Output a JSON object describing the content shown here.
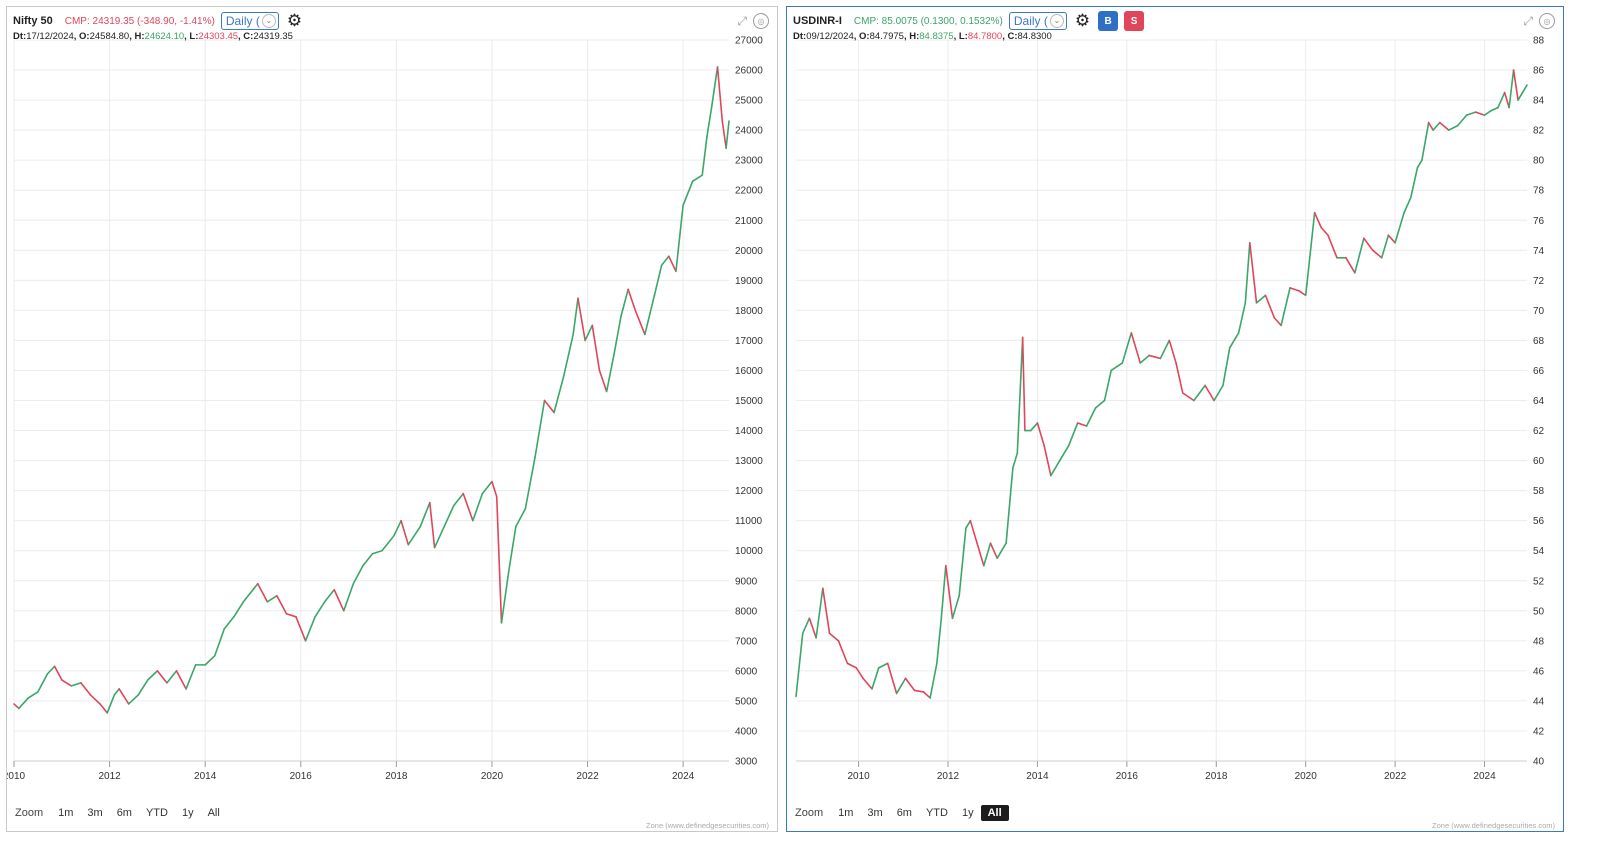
{
  "left": {
    "symbol": "Nifty 50",
    "cmp": "CMP: 24319.35 (-348.90, -1.41%)",
    "interval": "Daily (",
    "ohlc": {
      "dt_label": "Dt:",
      "dt": "17/12/2024",
      "o_label": ", O:",
      "o": "24584.80",
      "h_label": ", H:",
      "h": "24624.10",
      "l_label": ", L:",
      "l": "24303.45",
      "c_label": ", C:",
      "c": "24319.35"
    },
    "zoom": {
      "label": "Zoom",
      "buttons": [
        "1m",
        "3m",
        "6m",
        "YTD",
        "1y",
        "All"
      ],
      "active": ""
    },
    "credit": "Zone (www.definedgesecurities.com)"
  },
  "right": {
    "symbol": "USDINR-I",
    "cmp": "CMP: 85.0075 (0.1300, 0.1532%)",
    "interval": "Daily (",
    "buy_label": "B",
    "sell_label": "S",
    "ohlc": {
      "dt_label": "Dt:",
      "dt": "09/12/2024",
      "o_label": ", O:",
      "o": "84.7975",
      "h_label": ", H:",
      "h": "84.8375",
      "l_label": ", L:",
      "l": "84.7800",
      "c_label": ", C:",
      "c": "84.8300"
    },
    "zoom": {
      "label": "Zoom",
      "buttons": [
        "1m",
        "3m",
        "6m",
        "YTD",
        "1y",
        "All"
      ],
      "active": "All"
    },
    "credit": "Zone (www.definedgesecurities.com)"
  },
  "colors": {
    "up": "#3aa66a",
    "down": "#e0455a",
    "grid": "#ececec",
    "accent": "#3a78c9"
  },
  "chart_data": [
    {
      "type": "line",
      "title": "Nifty 50",
      "x_range": [
        2010,
        2024.96
      ],
      "ylim": [
        3000,
        27000
      ],
      "y_ticks": [
        3000,
        4000,
        5000,
        6000,
        7000,
        8000,
        9000,
        10000,
        11000,
        12000,
        13000,
        14000,
        15000,
        16000,
        17000,
        18000,
        19000,
        20000,
        21000,
        22000,
        23000,
        24000,
        25000,
        26000,
        27000
      ],
      "x_ticks": [
        2010,
        2012,
        2014,
        2016,
        2018,
        2020,
        2022,
        2024
      ],
      "grid": true,
      "series": [
        {
          "points": [
            [
              2010.0,
              4900
            ],
            [
              2010.1,
              4750
            ],
            [
              2010.3,
              5100
            ],
            [
              2010.5,
              5300
            ],
            [
              2010.7,
              5900
            ],
            [
              2010.85,
              6150
            ],
            [
              2011.0,
              5700
            ],
            [
              2011.2,
              5500
            ],
            [
              2011.4,
              5600
            ],
            [
              2011.6,
              5200
            ],
            [
              2011.8,
              4900
            ],
            [
              2011.95,
              4600
            ],
            [
              2012.1,
              5200
            ],
            [
              2012.2,
              5400
            ],
            [
              2012.4,
              4900
            ],
            [
              2012.6,
              5200
            ],
            [
              2012.8,
              5700
            ],
            [
              2013.0,
              6000
            ],
            [
              2013.2,
              5600
            ],
            [
              2013.4,
              6000
            ],
            [
              2013.6,
              5400
            ],
            [
              2013.8,
              6200
            ],
            [
              2014.0,
              6200
            ],
            [
              2014.2,
              6500
            ],
            [
              2014.4,
              7400
            ],
            [
              2014.6,
              7800
            ],
            [
              2014.8,
              8300
            ],
            [
              2015.1,
              8900
            ],
            [
              2015.3,
              8300
            ],
            [
              2015.5,
              8500
            ],
            [
              2015.7,
              7900
            ],
            [
              2015.9,
              7800
            ],
            [
              2016.1,
              7000
            ],
            [
              2016.3,
              7800
            ],
            [
              2016.5,
              8300
            ],
            [
              2016.7,
              8700
            ],
            [
              2016.9,
              8000
            ],
            [
              2017.1,
              8900
            ],
            [
              2017.3,
              9500
            ],
            [
              2017.5,
              9900
            ],
            [
              2017.7,
              10000
            ],
            [
              2017.95,
              10500
            ],
            [
              2018.1,
              11000
            ],
            [
              2018.25,
              10200
            ],
            [
              2018.5,
              10800
            ],
            [
              2018.7,
              11600
            ],
            [
              2018.8,
              10100
            ],
            [
              2019.0,
              10800
            ],
            [
              2019.2,
              11500
            ],
            [
              2019.4,
              11900
            ],
            [
              2019.6,
              11000
            ],
            [
              2019.8,
              11900
            ],
            [
              2020.0,
              12300
            ],
            [
              2020.1,
              11800
            ],
            [
              2020.2,
              7600
            ],
            [
              2020.35,
              9300
            ],
            [
              2020.5,
              10800
            ],
            [
              2020.7,
              11400
            ],
            [
              2020.9,
              13100
            ],
            [
              2021.1,
              15000
            ],
            [
              2021.3,
              14600
            ],
            [
              2021.5,
              15800
            ],
            [
              2021.7,
              17200
            ],
            [
              2021.8,
              18400
            ],
            [
              2021.95,
              17000
            ],
            [
              2022.1,
              17500
            ],
            [
              2022.25,
              16000
            ],
            [
              2022.4,
              15300
            ],
            [
              2022.55,
              16500
            ],
            [
              2022.7,
              17800
            ],
            [
              2022.85,
              18700
            ],
            [
              2023.0,
              18000
            ],
            [
              2023.2,
              17200
            ],
            [
              2023.4,
              18500
            ],
            [
              2023.55,
              19500
            ],
            [
              2023.7,
              19800
            ],
            [
              2023.85,
              19300
            ],
            [
              2024.0,
              21500
            ],
            [
              2024.2,
              22300
            ],
            [
              2024.4,
              22500
            ],
            [
              2024.5,
              23800
            ],
            [
              2024.6,
              24800
            ],
            [
              2024.72,
              26100
            ],
            [
              2024.82,
              24300
            ],
            [
              2024.9,
              23400
            ],
            [
              2024.96,
              24300
            ]
          ]
        }
      ]
    },
    {
      "type": "line",
      "title": "USDINR-I",
      "x_range": [
        2008.6,
        2024.95
      ],
      "ylim": [
        40,
        88
      ],
      "y_ticks": [
        40,
        42,
        44,
        46,
        48,
        50,
        52,
        54,
        56,
        58,
        60,
        62,
        64,
        66,
        68,
        70,
        72,
        74,
        76,
        78,
        80,
        82,
        84,
        86,
        88
      ],
      "x_ticks": [
        2010,
        2012,
        2014,
        2016,
        2018,
        2020,
        2022,
        2024
      ],
      "grid": true,
      "series": [
        {
          "points": [
            [
              2008.6,
              44.3
            ],
            [
              2008.75,
              48.5
            ],
            [
              2008.9,
              49.5
            ],
            [
              2009.05,
              48.2
            ],
            [
              2009.2,
              51.5
            ],
            [
              2009.35,
              48.5
            ],
            [
              2009.55,
              48.0
            ],
            [
              2009.75,
              46.5
            ],
            [
              2009.95,
              46.2
            ],
            [
              2010.1,
              45.5
            ],
            [
              2010.3,
              44.8
            ],
            [
              2010.45,
              46.2
            ],
            [
              2010.65,
              46.5
            ],
            [
              2010.85,
              44.5
            ],
            [
              2011.05,
              45.5
            ],
            [
              2011.25,
              44.7
            ],
            [
              2011.45,
              44.6
            ],
            [
              2011.6,
              44.2
            ],
            [
              2011.75,
              46.5
            ],
            [
              2011.85,
              49.5
            ],
            [
              2011.95,
              53.0
            ],
            [
              2012.1,
              49.5
            ],
            [
              2012.25,
              51.0
            ],
            [
              2012.4,
              55.5
            ],
            [
              2012.5,
              56.0
            ],
            [
              2012.65,
              54.5
            ],
            [
              2012.8,
              53.0
            ],
            [
              2012.95,
              54.5
            ],
            [
              2013.1,
              53.5
            ],
            [
              2013.3,
              54.5
            ],
            [
              2013.45,
              59.5
            ],
            [
              2013.55,
              60.5
            ],
            [
              2013.67,
              68.2
            ],
            [
              2013.72,
              62.0
            ],
            [
              2013.85,
              62.0
            ],
            [
              2014.0,
              62.5
            ],
            [
              2014.15,
              61.0
            ],
            [
              2014.3,
              59.0
            ],
            [
              2014.5,
              60.0
            ],
            [
              2014.7,
              61.0
            ],
            [
              2014.9,
              62.5
            ],
            [
              2015.1,
              62.3
            ],
            [
              2015.3,
              63.5
            ],
            [
              2015.5,
              64.0
            ],
            [
              2015.65,
              66.0
            ],
            [
              2015.9,
              66.5
            ],
            [
              2016.1,
              68.5
            ],
            [
              2016.3,
              66.5
            ],
            [
              2016.5,
              67.0
            ],
            [
              2016.75,
              66.8
            ],
            [
              2016.95,
              68.0
            ],
            [
              2017.1,
              66.5
            ],
            [
              2017.25,
              64.5
            ],
            [
              2017.5,
              64.0
            ],
            [
              2017.75,
              65.0
            ],
            [
              2017.95,
              64.0
            ],
            [
              2018.15,
              65.0
            ],
            [
              2018.3,
              67.5
            ],
            [
              2018.5,
              68.5
            ],
            [
              2018.65,
              70.5
            ],
            [
              2018.75,
              74.5
            ],
            [
              2018.9,
              70.5
            ],
            [
              2019.1,
              71.0
            ],
            [
              2019.3,
              69.5
            ],
            [
              2019.45,
              69.0
            ],
            [
              2019.65,
              71.5
            ],
            [
              2019.85,
              71.3
            ],
            [
              2020.0,
              71.0
            ],
            [
              2020.2,
              76.5
            ],
            [
              2020.35,
              75.5
            ],
            [
              2020.5,
              75.0
            ],
            [
              2020.7,
              73.5
            ],
            [
              2020.9,
              73.5
            ],
            [
              2021.1,
              72.5
            ],
            [
              2021.3,
              74.8
            ],
            [
              2021.5,
              74.0
            ],
            [
              2021.7,
              73.5
            ],
            [
              2021.85,
              75.0
            ],
            [
              2022.0,
              74.5
            ],
            [
              2022.2,
              76.5
            ],
            [
              2022.35,
              77.5
            ],
            [
              2022.5,
              79.5
            ],
            [
              2022.6,
              80.0
            ],
            [
              2022.75,
              82.5
            ],
            [
              2022.85,
              82.0
            ],
            [
              2023.0,
              82.5
            ],
            [
              2023.2,
              82.0
            ],
            [
              2023.4,
              82.3
            ],
            [
              2023.6,
              83.0
            ],
            [
              2023.8,
              83.2
            ],
            [
              2024.0,
              83.0
            ],
            [
              2024.15,
              83.3
            ],
            [
              2024.3,
              83.5
            ],
            [
              2024.45,
              84.5
            ],
            [
              2024.55,
              83.5
            ],
            [
              2024.65,
              86.0
            ],
            [
              2024.75,
              84.0
            ],
            [
              2024.85,
              84.5
            ],
            [
              2024.95,
              85.0
            ]
          ]
        }
      ]
    }
  ]
}
